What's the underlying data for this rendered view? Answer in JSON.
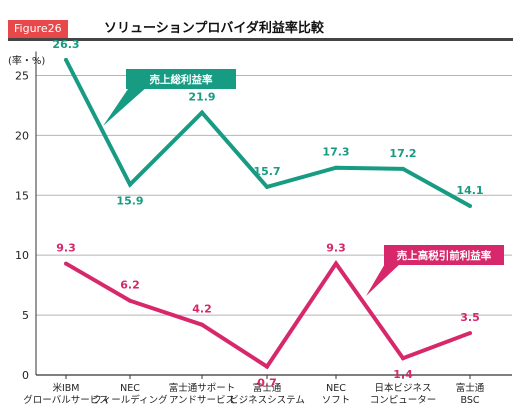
{
  "figure": {
    "badge": "Figure26",
    "title": "ソリューションプロバイダ利益率比較"
  },
  "colors": {
    "badge_bg": "#e8484a",
    "series_gross": "#189b83",
    "series_pretax": "#d6286a",
    "grid": "#b5b5b5"
  },
  "chart_data": {
    "type": "line",
    "ylabel": "(率・%)",
    "ylim": [
      0,
      27
    ],
    "yticks": [
      0,
      5,
      10,
      15,
      20,
      25
    ],
    "grid": true,
    "categories": [
      [
        "米IBM",
        "グローバルサービス"
      ],
      [
        "NEC",
        "フィールディング"
      ],
      [
        "富士通サポート",
        "アンドサービス"
      ],
      [
        "富士通",
        "ビジネスシステム"
      ],
      [
        "NEC",
        "ソフト"
      ],
      [
        "日本ビジネス",
        "コンピューター"
      ],
      [
        "富士通",
        "BSC"
      ]
    ],
    "series": [
      {
        "name": "売上総利益率",
        "values": [
          26.3,
          15.9,
          21.9,
          15.7,
          17.3,
          17.2,
          14.1
        ],
        "labels": [
          "26.3",
          "15.9",
          "21.9",
          "15.7",
          "17.3",
          "17.2",
          "14.1"
        ]
      },
      {
        "name": "売上高税引前利益率",
        "values": [
          9.3,
          6.2,
          4.2,
          0.7,
          9.3,
          1.4,
          3.5
        ],
        "labels": [
          "9.3",
          "6.2",
          "4.2",
          "0.7",
          "9.3",
          "1.4",
          "3.5"
        ]
      }
    ]
  }
}
